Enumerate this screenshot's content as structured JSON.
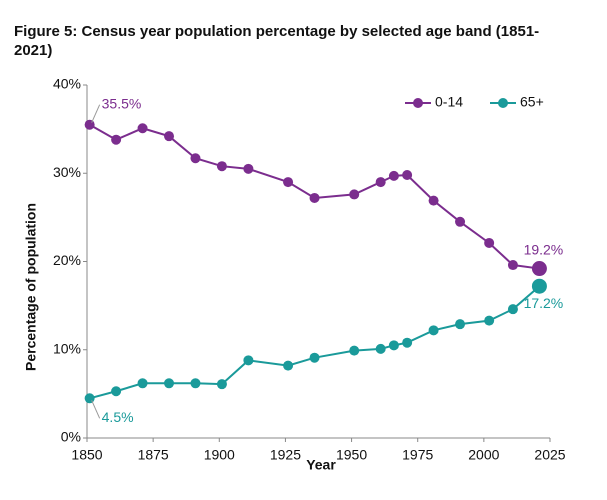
{
  "chart_data": {
    "type": "line",
    "title": "Figure 5: Census year population percentage by selected age band (1851-2021)",
    "x_label": "Year",
    "y_label": "Percentage of population",
    "x": [
      1851,
      1861,
      1871,
      1881,
      1891,
      1901,
      1911,
      1926,
      1936,
      1951,
      1961,
      1966,
      1971,
      1981,
      1991,
      2002,
      2011,
      2021
    ],
    "series": [
      {
        "name": "0-14",
        "color": "#7b2d8e",
        "values": [
          35.5,
          33.8,
          35.1,
          34.2,
          31.7,
          30.8,
          30.5,
          29.0,
          27.2,
          27.6,
          29.0,
          29.7,
          29.8,
          26.9,
          24.5,
          22.1,
          19.6,
          19.2
        ],
        "value_labels": [
          "35.5%",
          null,
          null,
          null,
          null,
          null,
          null,
          null,
          null,
          null,
          null,
          null,
          null,
          null,
          null,
          null,
          null,
          "19.2%"
        ]
      },
      {
        "name": "65+",
        "color": "#1a9a9a",
        "values": [
          4.5,
          5.3,
          6.2,
          6.2,
          6.2,
          6.1,
          8.8,
          8.2,
          9.1,
          9.9,
          10.1,
          10.5,
          10.8,
          12.2,
          12.9,
          13.3,
          14.6,
          17.2
        ],
        "value_labels": [
          "4.5%",
          null,
          null,
          null,
          null,
          null,
          null,
          null,
          null,
          null,
          null,
          null,
          null,
          null,
          null,
          null,
          null,
          "17.2%"
        ]
      }
    ],
    "xlim": [
      1850,
      2025
    ],
    "xticks": [
      1850,
      1875,
      1900,
      1925,
      1950,
      1975,
      2000,
      2025
    ],
    "ylim": [
      0,
      40
    ],
    "yticks": [
      {
        "value": 0,
        "label": "0%"
      },
      {
        "value": 10,
        "label": "10%"
      },
      {
        "value": 20,
        "label": "20%"
      },
      {
        "value": 30,
        "label": "30%"
      },
      {
        "value": 40,
        "label": "40%"
      }
    ],
    "grid": false,
    "legend": "top-right"
  }
}
